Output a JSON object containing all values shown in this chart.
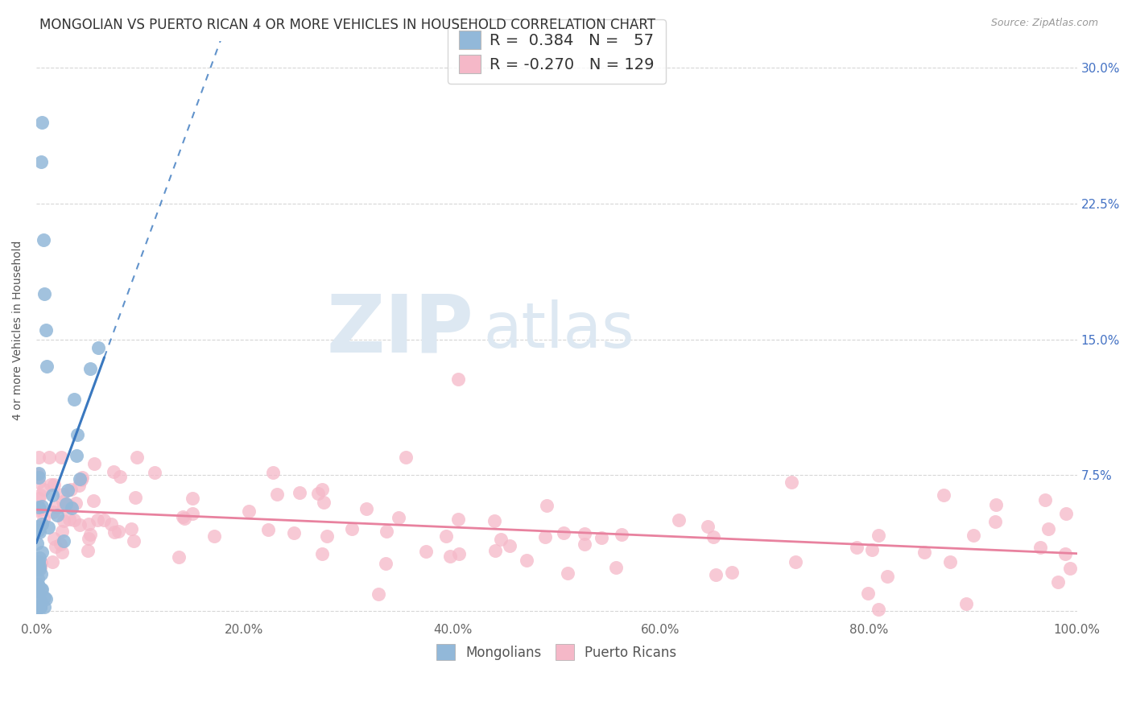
{
  "title": "MONGOLIAN VS PUERTO RICAN 4 OR MORE VEHICLES IN HOUSEHOLD CORRELATION CHART",
  "source": "Source: ZipAtlas.com",
  "ylabel": "4 or more Vehicles in Household",
  "xlim": [
    0.0,
    100.0
  ],
  "ylim": [
    -0.5,
    31.5
  ],
  "xticks": [
    0.0,
    20.0,
    40.0,
    60.0,
    80.0,
    100.0
  ],
  "yticks": [
    0.0,
    7.5,
    15.0,
    22.5,
    30.0
  ],
  "xtick_labels": [
    "0.0%",
    "20.0%",
    "40.0%",
    "60.0%",
    "80.0%",
    "100.0%"
  ],
  "ytick_labels": [
    "",
    "7.5%",
    "15.0%",
    "22.5%",
    "30.0%"
  ],
  "mongolian_color": "#92b8d9",
  "puerto_rican_color": "#f5b8c8",
  "mongolian_line_color": "#3a78bf",
  "puerto_rican_line_color": "#e8829f",
  "background_color": "#ffffff",
  "grid_color": "#cccccc",
  "title_fontsize": 12,
  "axis_label_fontsize": 10,
  "tick_fontsize": 11,
  "legend_fontsize": 14,
  "watermark_zip_color": "#d8e4f0",
  "watermark_atlas_color": "#c8d8e8",
  "legend_r_mongolian": "0.384",
  "legend_n_mongolian": "57",
  "legend_r_puerto_rican": "-0.270",
  "legend_n_puerto_rican": "129",
  "seed": 123
}
